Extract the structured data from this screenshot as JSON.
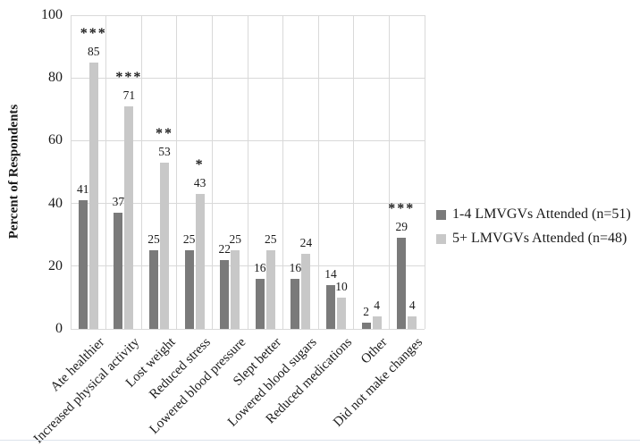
{
  "chart_data": {
    "type": "bar",
    "title": "",
    "xlabel": "",
    "ylabel": "Percent of Respondents",
    "ylim": [
      0,
      100
    ],
    "yticks": [
      0,
      20,
      40,
      60,
      80,
      100
    ],
    "grid": true,
    "legend_position": "right",
    "categories": [
      "Ate healthier",
      "Increased physical activity",
      "Lost weight",
      "Reduced stress",
      "Lowered blood pressure",
      "Slept better",
      "Lowered blood sugars",
      "Reduced medications",
      "Other",
      "Did not make changes"
    ],
    "series": [
      {
        "name": "1-4 LMVGVs Attended (n=51)",
        "color": "#7a7a7a",
        "values": [
          41,
          37,
          25,
          25,
          22,
          16,
          16,
          14,
          2,
          29
        ]
      },
      {
        "name": "5+ LMVGVs Attended (n=48)",
        "color": "#c8c8c8",
        "values": [
          85,
          71,
          53,
          43,
          25,
          25,
          24,
          10,
          4,
          4
        ]
      }
    ],
    "significance_markers": [
      {
        "marker": "***",
        "category_index": 0,
        "series_index": 1,
        "category": "Ate healthier"
      },
      {
        "marker": "***",
        "category_index": 1,
        "series_index": 1,
        "category": "Increased physical activity"
      },
      {
        "marker": "**",
        "category_index": 2,
        "series_index": 1,
        "category": "Lost weight"
      },
      {
        "marker": "*",
        "category_index": 3,
        "series_index": 1,
        "category": "Reduced stress"
      },
      {
        "marker": "***",
        "category_index": 9,
        "series_index": 0,
        "category": "Did not make changes"
      }
    ]
  },
  "colors": {
    "gridline": "#d9d9d9",
    "axis_text": "#1a1a1a",
    "bottom_rule": "#dce3ec",
    "background": "#ffffff"
  }
}
